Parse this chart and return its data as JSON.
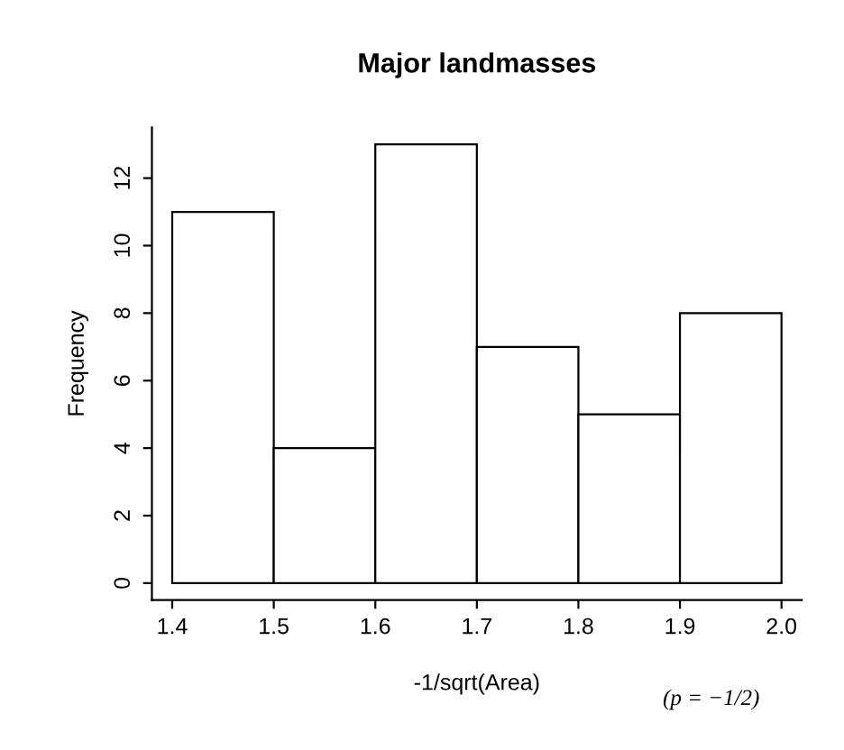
{
  "chart_data": {
    "type": "histogram",
    "title": "Major landmasses",
    "xlabel": "-1/sqrt(Area)",
    "ylabel": "Frequency",
    "bins": [
      1.4,
      1.5,
      1.6,
      1.7,
      1.8,
      1.9,
      2.0
    ],
    "values": [
      11,
      4,
      13,
      7,
      5,
      8
    ],
    "color": "#ffffff",
    "xlim": [
      1.38,
      2.02
    ],
    "ylim": [
      -0.5,
      13.5
    ],
    "xticks": [
      1.4,
      1.5,
      1.6,
      1.7,
      1.8,
      1.9,
      {
        "value": 2,
        "label": "2.0"
      }
    ],
    "yticks": [
      0,
      2,
      4,
      6,
      8,
      10,
      12
    ],
    "grid": false,
    "legend": false,
    "annotations": [
      "(p = −1/2)"
    ]
  }
}
